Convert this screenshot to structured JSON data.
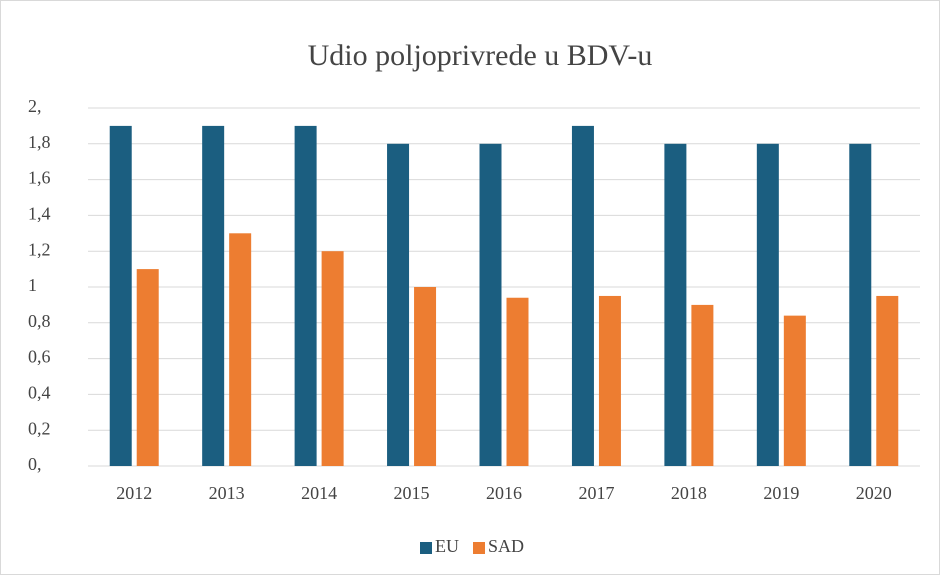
{
  "chart_data": {
    "type": "bar",
    "title": "Udio poljoprivrede u BDV-u",
    "categories": [
      "2012",
      "2013",
      "2014",
      "2015",
      "2016",
      "2017",
      "2018",
      "2019",
      "2020"
    ],
    "series": [
      {
        "name": "EU",
        "color": "#1b5e80",
        "values": [
          1.9,
          1.9,
          1.9,
          1.8,
          1.8,
          1.9,
          1.8,
          1.8,
          1.8
        ]
      },
      {
        "name": "SAD",
        "color": "#ed7d31",
        "values": [
          1.1,
          1.3,
          1.2,
          1.0,
          0.94,
          0.95,
          0.9,
          0.84,
          0.95
        ]
      }
    ],
    "ylim": [
      0,
      2
    ],
    "yticks": [
      {
        "value": 0,
        "label": "0,"
      },
      {
        "value": 0.2,
        "label": "0,2"
      },
      {
        "value": 0.4,
        "label": "0,4"
      },
      {
        "value": 0.6,
        "label": "0,6"
      },
      {
        "value": 0.8,
        "label": "0,8"
      },
      1,
      {
        "value": 1.2,
        "label": "1,2"
      },
      {
        "value": 1.4,
        "label": "1,4"
      },
      {
        "value": 1.6,
        "label": "1,6"
      },
      {
        "value": 1.8,
        "label": "1,8"
      },
      {
        "value": 2,
        "label": "2,"
      }
    ],
    "grid": true,
    "legend": "bottom"
  }
}
